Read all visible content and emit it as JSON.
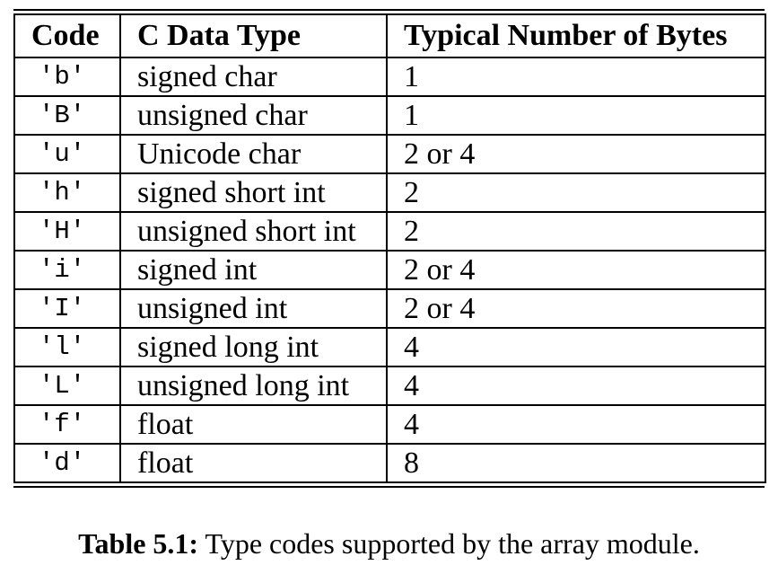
{
  "table": {
    "headers": [
      "Code",
      "C Data Type",
      "Typical Number of Bytes"
    ],
    "rows": [
      {
        "code": "'b'",
        "type": "signed char",
        "bytes": "1"
      },
      {
        "code": "'B'",
        "type": "unsigned char",
        "bytes": "1"
      },
      {
        "code": "'u'",
        "type": "Unicode char",
        "bytes": "2 or 4"
      },
      {
        "code": "'h'",
        "type": "signed short int",
        "bytes": "2"
      },
      {
        "code": "'H'",
        "type": "unsigned short int",
        "bytes": "2"
      },
      {
        "code": "'i'",
        "type": "signed int",
        "bytes": "2 or 4"
      },
      {
        "code": "'I'",
        "type": "unsigned int",
        "bytes": "2 or 4"
      },
      {
        "code": "'l'",
        "type": "signed long int",
        "bytes": "4"
      },
      {
        "code": "'L'",
        "type": "unsigned long int",
        "bytes": "4"
      },
      {
        "code": "'f'",
        "type": "float",
        "bytes": "4"
      },
      {
        "code": "'d'",
        "type": "float",
        "bytes": "8"
      }
    ]
  },
  "caption": {
    "label": "Table 5.1:",
    "text": "Type codes supported by the array module."
  }
}
